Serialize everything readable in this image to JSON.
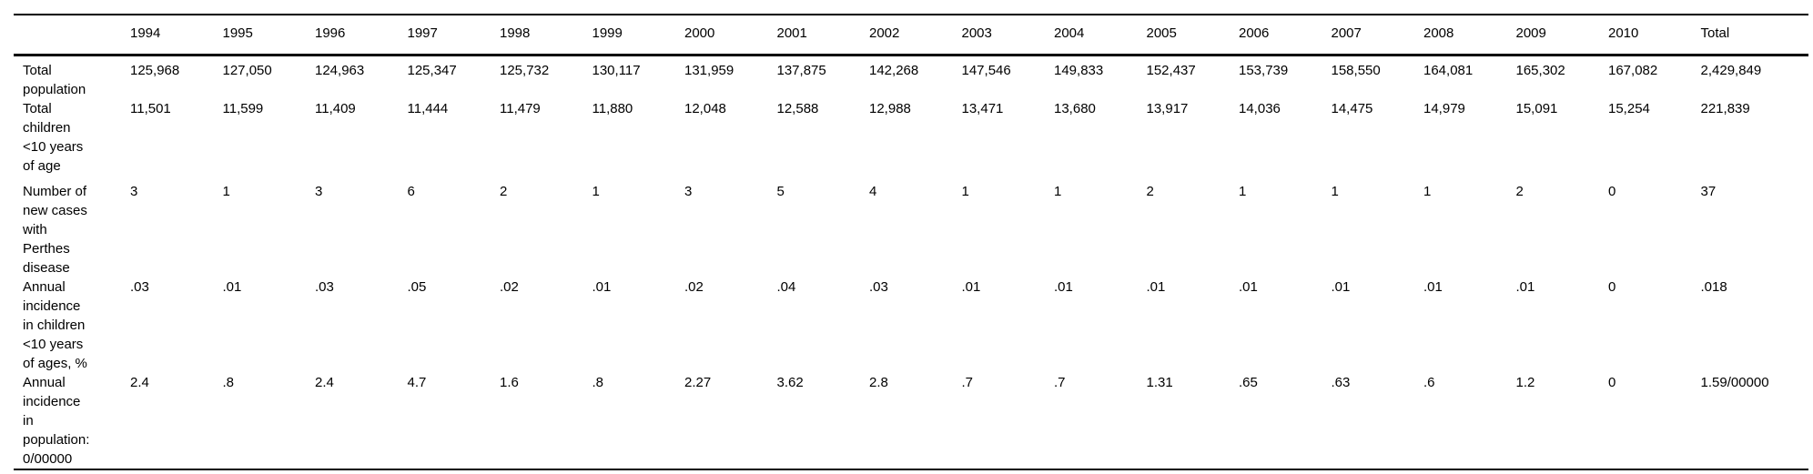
{
  "table": {
    "columns": [
      "",
      "1994",
      "1995",
      "1996",
      "1997",
      "1998",
      "1999",
      "2000",
      "2001",
      "2002",
      "2003",
      "2004",
      "2005",
      "2006",
      "2007",
      "2008",
      "2009",
      "2010",
      "Total"
    ],
    "rows": [
      {
        "label": "Total\npopulation",
        "values": [
          "125,968",
          "127,050",
          "124,963",
          "125,347",
          "125,732",
          "130,117",
          "131,959",
          "137,875",
          "142,268",
          "147,546",
          "149,833",
          "152,437",
          "153,739",
          "158,550",
          "164,081",
          "165,302",
          "167,082",
          "2,429,849"
        ]
      },
      {
        "label": "Total\nchildren\n<10 years\nof age",
        "values": [
          "11,501",
          "11,599",
          "11,409",
          "11,444",
          "11,479",
          "11,880",
          "12,048",
          "12,588",
          "12,988",
          "13,471",
          "13,680",
          "13,917",
          "14,036",
          "14,475",
          "14,979",
          "15,091",
          "15,254",
          "221,839"
        ]
      },
      {
        "label": "Number of\nnew cases\nwith\nPerthes\ndisease",
        "values": [
          "3",
          "1",
          "3",
          "6",
          "2",
          "1",
          "3",
          "5",
          "4",
          "1",
          "1",
          "2",
          "1",
          "1",
          "1",
          "2",
          "0",
          "37"
        ]
      },
      {
        "label": "Annual\nincidence\nin children\n<10 years\nof ages, %",
        "values": [
          ".03",
          ".01",
          ".03",
          ".05",
          ".02",
          ".01",
          ".02",
          ".04",
          ".03",
          ".01",
          ".01",
          ".01",
          ".01",
          ".01",
          ".01",
          ".01",
          "0",
          ".018"
        ]
      },
      {
        "label": "Annual\nincidence\nin\npopulation:\n0/00000",
        "values": [
          "2.4",
          ".8",
          "2.4",
          "4.7",
          "1.6",
          ".8",
          "2.27",
          "3.62",
          "2.8",
          ".7",
          ".7",
          "1.31",
          ".65",
          ".63",
          ".6",
          "1.2",
          "0",
          "1.59/00000"
        ]
      }
    ]
  },
  "colors": {
    "text": "#000000",
    "background": "#ffffff",
    "rule": "#000000"
  }
}
